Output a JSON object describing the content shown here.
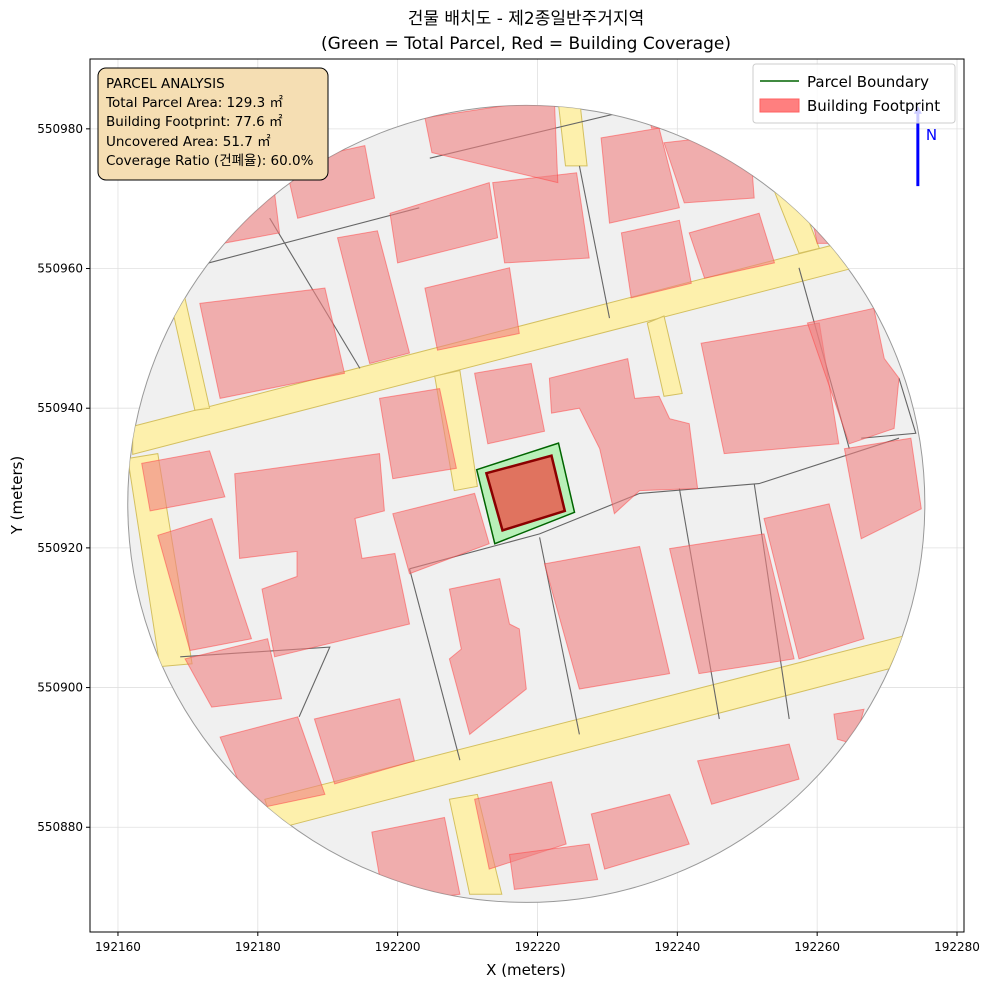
{
  "chart_data": {
    "type": "map",
    "title": "건물 배치도 - 제2종일반주거지역",
    "subtitle": "(Green = Total Parcel, Red = Building Coverage)",
    "xlabel": "X (meters)",
    "ylabel": "Y (meters)",
    "xlim": [
      192156,
      192281
    ],
    "ylim": [
      550865,
      550990
    ],
    "grid": true,
    "xticks": [
      "192160",
      "192180",
      "192200",
      "192220",
      "192240",
      "192260",
      "192280"
    ],
    "yticks": [
      "550880",
      "550900",
      "550920",
      "550940",
      "550960",
      "550980"
    ],
    "colors": {
      "background": "#f0f0f0",
      "building": "#f08080",
      "road": "#fff0a0",
      "parcel_fill": "#b8f0b8",
      "parcel_edge": "#006400",
      "target_building_fill": "#e0735f",
      "target_building_edge": "#8b0000",
      "north_arrow": "#0000ff"
    },
    "study_area": {
      "center": [
        192218.4,
        550926.3
      ],
      "radius_m": 57
    },
    "roads": [
      [
        [
          192162.1,
          550937.4
        ],
        [
          192264.3,
          550963.9
        ],
        [
          192265.3,
          550960.1
        ],
        [
          192162.1,
          550933.4
        ]
      ],
      [
        [
          192181.0,
          550884.0
        ],
        [
          192272.4,
          550907.4
        ],
        [
          192270.3,
          550902.7
        ],
        [
          192182.4,
          550879.7
        ]
      ],
      [
        [
          192161.4,
          550932.8
        ],
        [
          192165.7,
          550933.5
        ],
        [
          192170.6,
          550903.4
        ],
        [
          192166.0,
          550903.0
        ]
      ],
      [
        [
          192167.1,
          550957.2
        ],
        [
          192169.1,
          550957.9
        ],
        [
          192173.1,
          550940.0
        ],
        [
          192171.0,
          550939.7
        ]
      ],
      [
        [
          192205.3,
          550944.6
        ],
        [
          192208.9,
          550945.4
        ],
        [
          192211.4,
          550928.8
        ],
        [
          192208.1,
          550928.2
        ]
      ],
      [
        [
          192222.9,
          550984.4
        ],
        [
          192226.0,
          550984.4
        ],
        [
          192227.1,
          550974.7
        ],
        [
          192224.0,
          550974.7
        ]
      ],
      [
        [
          192252.0,
          550975.8
        ],
        [
          192255.3,
          550975.8
        ],
        [
          192260.3,
          550962.9
        ],
        [
          192257.4,
          550962.2
        ]
      ],
      [
        [
          192235.7,
          550952.2
        ],
        [
          192238.1,
          550953.2
        ],
        [
          192240.7,
          550942.1
        ],
        [
          192238.1,
          550941.7
        ]
      ],
      [
        [
          192207.4,
          550884.0
        ],
        [
          192211.4,
          550884.7
        ],
        [
          192214.9,
          550870.4
        ],
        [
          192210.3,
          550870.4
        ]
      ]
    ],
    "buildings": [
      [
        [
          192171.7,
          550955.0
        ],
        [
          192189.6,
          550957.2
        ],
        [
          192192.4,
          550945.0
        ],
        [
          192174.6,
          550941.4
        ]
      ],
      [
        [
          192191.4,
          550964.4
        ],
        [
          192197.1,
          550965.4
        ],
        [
          192201.7,
          550947.9
        ],
        [
          192196.0,
          550946.4
        ]
      ],
      [
        [
          192203.9,
          550957.2
        ],
        [
          192216.0,
          550960.1
        ],
        [
          192217.4,
          550950.7
        ],
        [
          192205.7,
          550948.3
        ]
      ],
      [
        [
          192198.9,
          550967.9
        ],
        [
          192213.1,
          550972.3
        ],
        [
          192214.3,
          550964.4
        ],
        [
          192200.0,
          550960.8
        ]
      ],
      [
        [
          192213.6,
          550972.3
        ],
        [
          192225.6,
          550973.7
        ],
        [
          192227.4,
          550961.5
        ],
        [
          192215.3,
          550960.8
        ]
      ],
      [
        [
          192203.9,
          550981.6
        ],
        [
          192222.4,
          550984.4
        ],
        [
          192222.9,
          550972.3
        ],
        [
          192204.9,
          550976.6
        ]
      ],
      [
        [
          192183.9,
          550975.1
        ],
        [
          192195.3,
          550977.6
        ],
        [
          192196.7,
          550970.1
        ],
        [
          192185.7,
          550967.2
        ]
      ],
      [
        [
          192173.6,
          550965.1
        ],
        [
          192182.4,
          550970.8
        ],
        [
          192183.1,
          550965.1
        ],
        [
          192173.9,
          550963.4
        ]
      ],
      [
        [
          192229.1,
          550978.7
        ],
        [
          192237.4,
          550980.1
        ],
        [
          192240.3,
          550968.7
        ],
        [
          192230.3,
          550966.5
        ]
      ],
      [
        [
          192238.1,
          550978.0
        ],
        [
          192250.3,
          550979.4
        ],
        [
          192251.0,
          550970.1
        ],
        [
          192241.0,
          550969.4
        ]
      ],
      [
        [
          192232.0,
          550965.1
        ],
        [
          192240.3,
          550966.9
        ],
        [
          192242.0,
          550957.9
        ],
        [
          192233.4,
          550955.8
        ]
      ],
      [
        [
          192241.7,
          550965.1
        ],
        [
          192251.7,
          550967.9
        ],
        [
          192253.9,
          550960.8
        ],
        [
          192243.9,
          550958.6
        ]
      ],
      [
        [
          192235.7,
          550983.3
        ],
        [
          192239.1,
          550983.7
        ],
        [
          192239.9,
          550980.1
        ],
        [
          192236.3,
          550980.1
        ]
      ],
      [
        [
          192258.1,
          550973.0
        ],
        [
          192262.9,
          550967.9
        ],
        [
          192263.9,
          550963.6
        ],
        [
          192260.0,
          550963.6
        ]
      ],
      [
        [
          192197.4,
          550941.4
        ],
        [
          192206.0,
          550942.8
        ],
        [
          192208.4,
          550931.4
        ],
        [
          192199.3,
          550929.9
        ]
      ],
      [
        [
          192211.0,
          550945.0
        ],
        [
          192219.1,
          550946.4
        ],
        [
          192221.0,
          550936.7
        ],
        [
          192212.9,
          550934.9
        ]
      ],
      [
        [
          192221.7,
          550944.3
        ],
        [
          192232.9,
          550947.1
        ],
        [
          192233.9,
          550941.4
        ],
        [
          192237.4,
          550941.7
        ],
        [
          192238.9,
          550938.5
        ],
        [
          192241.7,
          550937.8
        ],
        [
          192242.9,
          550928.5
        ],
        [
          192234.6,
          550928.2
        ],
        [
          192231.0,
          550924.9
        ],
        [
          192228.9,
          550934.2
        ],
        [
          192226.0,
          550940.0
        ],
        [
          192222.0,
          550939.3
        ]
      ],
      [
        [
          192243.4,
          550949.3
        ],
        [
          192260.3,
          550952.2
        ],
        [
          192263.1,
          550934.9
        ],
        [
          192246.7,
          550933.5
        ]
      ],
      [
        [
          192258.6,
          550952.2
        ],
        [
          192268.1,
          550954.3
        ],
        [
          192269.6,
          550947.1
        ],
        [
          192271.7,
          550944.3
        ],
        [
          192271.0,
          550937.1
        ],
        [
          192264.6,
          550934.9
        ]
      ],
      [
        [
          192263.9,
          550934.2
        ],
        [
          192273.4,
          550935.7
        ],
        [
          192274.9,
          550925.6
        ],
        [
          192266.3,
          550921.3
        ]
      ],
      [
        [
          192163.4,
          550932.1
        ],
        [
          192173.1,
          550933.9
        ],
        [
          192175.3,
          550927.3
        ],
        [
          192164.6,
          550925.3
        ]
      ],
      [
        [
          192176.7,
          550930.6
        ],
        [
          192197.4,
          550933.5
        ],
        [
          192198.1,
          550925.3
        ],
        [
          192193.9,
          550924.2
        ],
        [
          192194.9,
          550918.5
        ],
        [
          192199.6,
          550919.2
        ],
        [
          192201.7,
          550909.1
        ],
        [
          192182.4,
          550904.4
        ],
        [
          192180.6,
          550914.1
        ],
        [
          192185.6,
          550915.9
        ],
        [
          192185.6,
          550919.5
        ],
        [
          192177.4,
          550918.5
        ]
      ],
      [
        [
          192165.7,
          550921.8
        ],
        [
          192173.4,
          550924.2
        ],
        [
          192179.1,
          550907.0
        ],
        [
          192170.3,
          550905.3
        ]
      ],
      [
        [
          192199.3,
          550924.9
        ],
        [
          192211.0,
          550927.8
        ],
        [
          192213.1,
          550920.6
        ],
        [
          192201.7,
          550916.3
        ]
      ],
      [
        [
          192169.6,
          550904.1
        ],
        [
          192181.4,
          550907.0
        ],
        [
          192183.4,
          550898.4
        ],
        [
          192173.4,
          550897.2
        ]
      ],
      [
        [
          192221.0,
          550917.7
        ],
        [
          192234.6,
          550920.2
        ],
        [
          192238.9,
          550902.0
        ],
        [
          192226.0,
          550899.8
        ]
      ],
      [
        [
          192238.9,
          550919.9
        ],
        [
          192252.4,
          550922.0
        ],
        [
          192256.7,
          550904.1
        ],
        [
          192243.1,
          550902.0
        ]
      ],
      [
        [
          192252.4,
          550924.2
        ],
        [
          192261.7,
          550926.3
        ],
        [
          192266.7,
          550907.0
        ],
        [
          192257.4,
          550904.1
        ]
      ],
      [
        [
          192207.4,
          550914.1
        ],
        [
          192214.6,
          550915.6
        ],
        [
          192216.0,
          550909.1
        ],
        [
          192217.4,
          550908.4
        ],
        [
          192218.4,
          550899.8
        ],
        [
          192210.3,
          550893.3
        ],
        [
          192207.4,
          550904.1
        ],
        [
          192209.1,
          550905.5
        ]
      ],
      [
        [
          192188.1,
          550895.5
        ],
        [
          192200.3,
          550898.4
        ],
        [
          192202.4,
          550889.5
        ],
        [
          192191.0,
          550886.2
        ]
      ],
      [
        [
          192174.6,
          550892.9
        ],
        [
          192185.7,
          550895.8
        ],
        [
          192189.6,
          550884.7
        ],
        [
          192181.0,
          550882.9
        ],
        [
          192177.4,
          550886.2
        ]
      ],
      [
        [
          192211.0,
          550884.0
        ],
        [
          192222.0,
          550886.5
        ],
        [
          192224.1,
          550877.6
        ],
        [
          192213.1,
          550874.0
        ]
      ],
      [
        [
          192227.7,
          550881.9
        ],
        [
          192238.9,
          550884.7
        ],
        [
          192241.7,
          550877.6
        ],
        [
          192229.6,
          550874.0
        ]
      ],
      [
        [
          192242.9,
          550889.5
        ],
        [
          192256.0,
          550891.9
        ],
        [
          192257.4,
          550886.9
        ],
        [
          192244.9,
          550883.3
        ]
      ],
      [
        [
          192196.3,
          550879.3
        ],
        [
          192206.7,
          550881.4
        ],
        [
          192208.9,
          550870.4
        ],
        [
          192198.1,
          550869.0
        ]
      ],
      [
        [
          192216.0,
          550876.1
        ],
        [
          192227.4,
          550877.6
        ],
        [
          192228.6,
          550872.5
        ],
        [
          192216.7,
          550871.1
        ]
      ],
      [
        [
          192262.4,
          550896.2
        ],
        [
          192266.7,
          550896.9
        ],
        [
          192265.3,
          550891.9
        ],
        [
          192262.9,
          550892.6
        ]
      ]
    ],
    "parcel_lines": [
      [
        [
          192201.7,
          550917.0
        ],
        [
          192220.3,
          550922.0
        ],
        [
          192234.6,
          550927.8
        ],
        [
          192251.7,
          550929.2
        ],
        [
          192271.7,
          550935.7
        ]
      ],
      [
        [
          192220.3,
          550921.5
        ],
        [
          192226.0,
          550893.3
        ]
      ],
      [
        [
          192201.7,
          550917.0
        ],
        [
          192208.9,
          550889.6
        ]
      ],
      [
        [
          192240.3,
          550928.5
        ],
        [
          192246.0,
          550895.5
        ]
      ],
      [
        [
          192251.0,
          550929.2
        ],
        [
          192256.0,
          550895.5
        ]
      ],
      [
        [
          192257.4,
          550960.1
        ],
        [
          192264.6,
          550934.2
        ]
      ],
      [
        [
          192226.0,
          550974.7
        ],
        [
          192230.3,
          550952.9
        ]
      ],
      [
        [
          192181.7,
          550967.2
        ],
        [
          192194.6,
          550945.7
        ]
      ],
      [
        [
          192204.6,
          550975.8
        ],
        [
          192234.6,
          550983.0
        ]
      ],
      [
        [
          192170.3,
          550960.1
        ],
        [
          192203.1,
          550968.7
        ]
      ],
      [
        [
          192266.3,
          550935.7
        ],
        [
          192274.1,
          550936.4
        ],
        [
          192271.7,
          550944.3
        ]
      ],
      [
        [
          192168.9,
          550904.4
        ],
        [
          192190.3,
          550905.8
        ],
        [
          192185.9,
          550895.8
        ]
      ]
    ],
    "target_parcel": [
      [
        192211.3,
        550931.2
      ],
      [
        192223.0,
        550935.0
      ],
      [
        192225.3,
        550925.1
      ],
      [
        192213.9,
        550920.6
      ]
    ],
    "target_building": [
      [
        192212.7,
        550930.7
      ],
      [
        192222.0,
        550933.2
      ],
      [
        192223.9,
        550925.3
      ],
      [
        192215.0,
        550922.5
      ]
    ],
    "north_arrow": {
      "label": "N",
      "x": 192274.4,
      "y_from": 550971.8,
      "y_to": 550983.3,
      "label_y": 550987.3
    },
    "legend": {
      "position": "upper right",
      "items": [
        {
          "label": "Parcel Boundary",
          "kind": "line",
          "color": "#006400"
        },
        {
          "label": "Building Footprint",
          "kind": "patch",
          "color": "#ff7f7f"
        }
      ]
    },
    "info_box": {
      "heading": "PARCEL ANALYSIS",
      "lines": [
        "Total Parcel Area: 129.3 ㎡",
        "Building Footprint: 77.6 ㎡",
        "Uncovered Area: 51.7 ㎡",
        "Coverage Ratio (건폐율): 60.0%"
      ],
      "background": "#f5deb3"
    }
  }
}
